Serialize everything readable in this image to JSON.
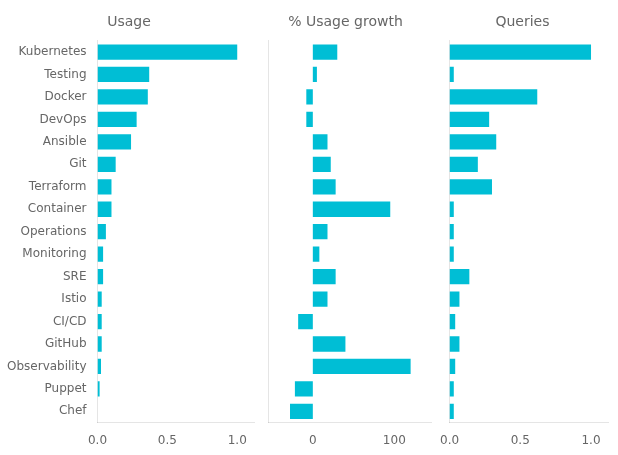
{
  "chart_data": [
    {
      "type": "bar",
      "orientation": "horizontal",
      "title": "Usage",
      "categories": [
        "Kubernetes",
        "Testing",
        "Docker",
        "DevOps",
        "Ansible",
        "Git",
        "Terraform",
        "Container",
        "Operations",
        "Monitoring",
        "SRE",
        "Istio",
        "CI/CD",
        "GitHub",
        "Observability",
        "Puppet",
        "Chef"
      ],
      "values": [
        1.0,
        0.37,
        0.36,
        0.28,
        0.24,
        0.13,
        0.1,
        0.1,
        0.06,
        0.04,
        0.04,
        0.03,
        0.03,
        0.03,
        0.025,
        0.015,
        0.0
      ],
      "color": "#00BED5",
      "xlim": [
        0,
        1.12
      ],
      "xticks": [
        {
          "value": 0,
          "label": "0.0"
        },
        0.5,
        {
          "value": 1,
          "label": "1.0"
        }
      ],
      "grid": false
    },
    {
      "type": "bar",
      "orientation": "horizontal",
      "title": "% Usage growth",
      "categories": [
        "Kubernetes",
        "Testing",
        "Docker",
        "DevOps",
        "Ansible",
        "Git",
        "Terraform",
        "Container",
        "Operations",
        "Monitoring",
        "SRE",
        "Istio",
        "CI/CD",
        "GitHub",
        "Observability",
        "Puppet",
        "Chef"
      ],
      "values": [
        30,
        5,
        -8,
        -8,
        18,
        22,
        28,
        95,
        18,
        8,
        28,
        18,
        -18,
        40,
        120,
        -22,
        -28
      ],
      "color": "#00BED5",
      "xlim": [
        -55,
        145
      ],
      "xticks": [
        0,
        100
      ],
      "grid": false,
      "tick_labels": "x"
    },
    {
      "type": "bar",
      "orientation": "horizontal",
      "title": "Queries",
      "categories": [
        "Kubernetes",
        "Testing",
        "Docker",
        "DevOps",
        "Ansible",
        "Git",
        "Terraform",
        "Container",
        "Operations",
        "Monitoring",
        "SRE",
        "Istio",
        "CI/CD",
        "GitHub",
        "Observability",
        "Puppet",
        "Chef"
      ],
      "values": [
        1.0,
        0.03,
        0.62,
        0.28,
        0.33,
        0.2,
        0.3,
        0.03,
        0.03,
        0.03,
        0.14,
        0.07,
        0.04,
        0.07,
        0.04,
        0.03,
        0.03
      ],
      "color": "#00BED5",
      "xlim": [
        0,
        1.12
      ],
      "xticks": [
        {
          "value": 0,
          "label": "0.0"
        },
        0.5,
        {
          "value": 1,
          "label": "1.0"
        }
      ],
      "grid": false,
      "tick_labels": "x"
    }
  ]
}
